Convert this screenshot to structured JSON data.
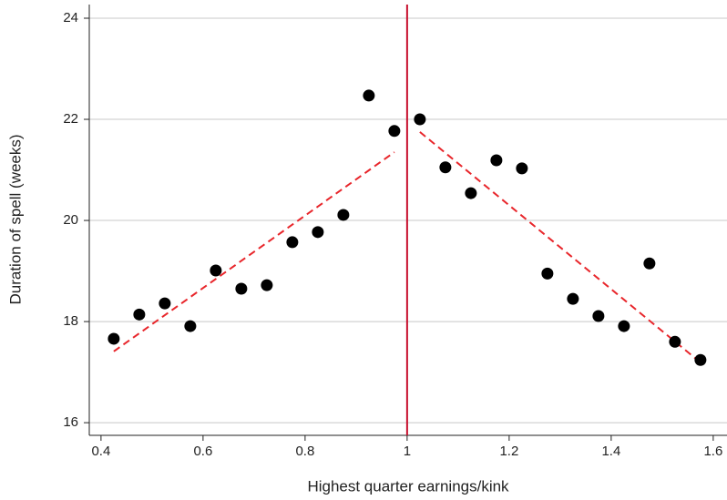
{
  "chart_data": {
    "type": "scatter",
    "x_label": "Highest quarter earnings/kink",
    "y_label": "Duration of spell (weeks)",
    "xlim": [
      0.377,
      1.627
    ],
    "ylim": [
      15.75,
      24.27
    ],
    "xticks": [
      0.4,
      0.6,
      0.8,
      1,
      1.2,
      1.4,
      1.6
    ],
    "yticks": [
      16,
      18,
      20,
      22,
      24
    ],
    "grid": true,
    "series": [
      {
        "color": "#000000",
        "x": [
          0.425,
          0.475,
          0.525,
          0.575,
          0.625,
          0.675,
          0.725,
          0.775,
          0.825,
          0.875,
          0.925,
          0.975,
          1.025,
          1.075,
          1.125,
          1.175,
          1.225,
          1.275,
          1.325,
          1.375,
          1.425,
          1.475,
          1.525,
          1.575
        ],
        "values": [
          17.66,
          18.14,
          18.36,
          17.91,
          19.01,
          18.65,
          18.72,
          19.57,
          19.77,
          20.11,
          22.47,
          21.77,
          22.0,
          21.05,
          20.54,
          21.19,
          21.03,
          18.95,
          18.45,
          18.11,
          17.91,
          19.15,
          17.6,
          17.24
        ]
      }
    ],
    "fits": [
      {
        "color": "#e8262b",
        "x": [
          0.425,
          0.975
        ],
        "values": [
          17.41,
          21.35
        ]
      },
      {
        "color": "#e8262b",
        "x": [
          1.025,
          1.575
        ],
        "values": [
          21.75,
          17.19
        ]
      }
    ],
    "vline": {
      "x": 1,
      "color": "#c8102e"
    }
  }
}
